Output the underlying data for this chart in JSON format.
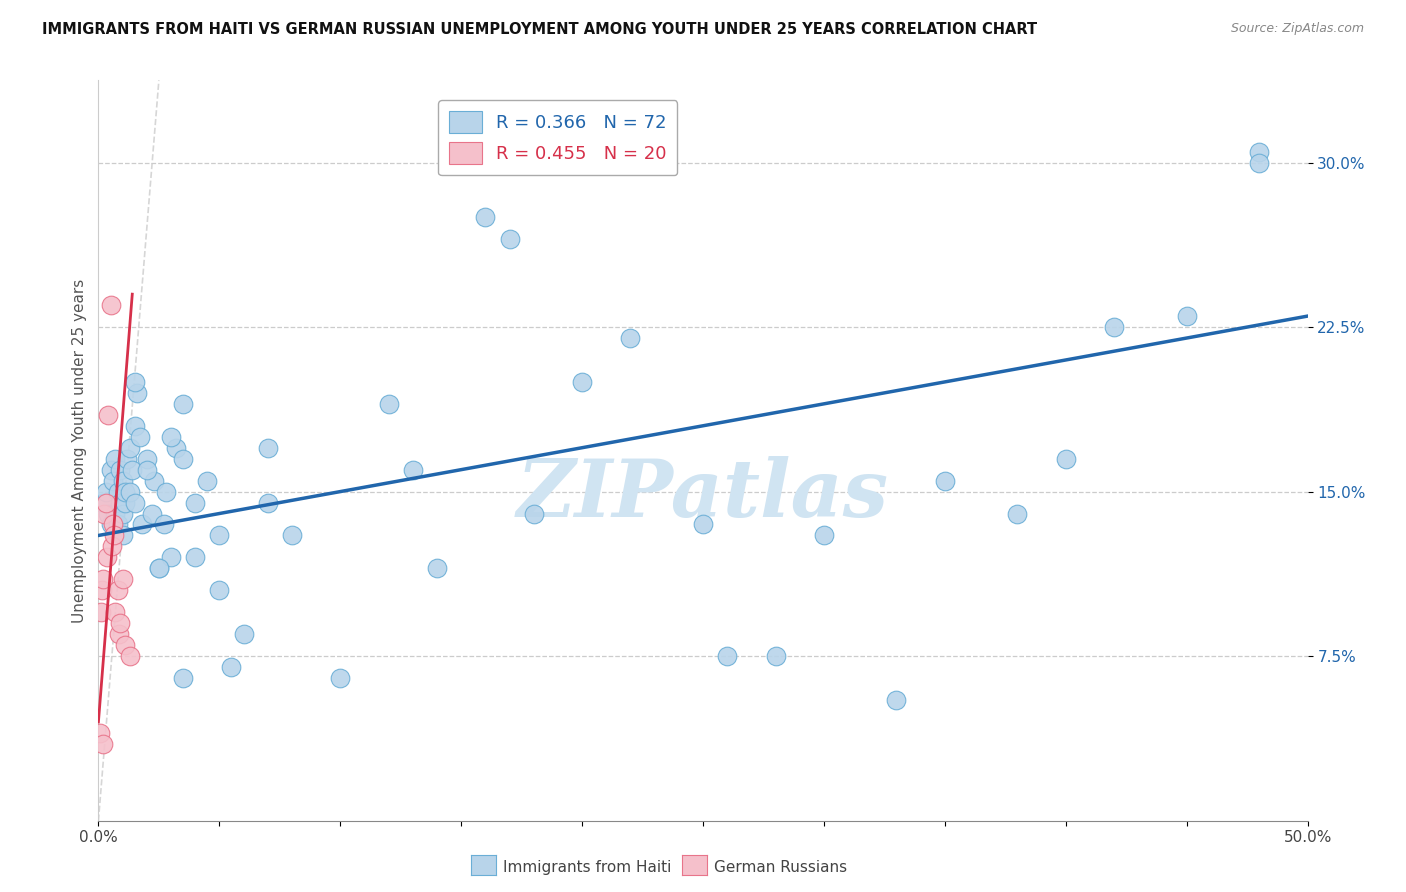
{
  "title": "IMMIGRANTS FROM HAITI VS GERMAN RUSSIAN UNEMPLOYMENT AMONG YOUTH UNDER 25 YEARS CORRELATION CHART",
  "source": "Source: ZipAtlas.com",
  "xlim": [
    0.0,
    50.0
  ],
  "ylim": [
    0.0,
    33.75
  ],
  "ylabel_vals": [
    7.5,
    15.0,
    22.5,
    30.0
  ],
  "ylabel_labels": [
    "7.5%",
    "15.0%",
    "22.5%",
    "30.0%"
  ],
  "xtick_vals": [
    0.0,
    5.0,
    10.0,
    15.0,
    20.0,
    25.0,
    30.0,
    35.0,
    40.0,
    45.0,
    50.0
  ],
  "xtick_labels_show": {
    "0.0": "0.0%",
    "50.0": "50.0%"
  },
  "ylabel": "Unemployment Among Youth under 25 years",
  "legend_xlabel": "Immigrants from Haiti",
  "legend_xlabel2": "German Russians",
  "haiti_color": "#b8d4ea",
  "haiti_edge_color": "#6aaed6",
  "german_color": "#f5c0cb",
  "german_edge_color": "#e8748a",
  "haiti_line_color": "#2166ac",
  "german_line_color": "#d6304a",
  "ref_line_color": "#cccccc",
  "watermark_color": "#d0e4f2",
  "haiti_x": [
    0.2,
    0.3,
    0.4,
    0.5,
    0.5,
    0.6,
    0.7,
    0.7,
    0.8,
    0.8,
    0.9,
    0.9,
    1.0,
    1.0,
    1.0,
    1.1,
    1.1,
    1.2,
    1.3,
    1.3,
    1.4,
    1.5,
    1.5,
    1.6,
    1.7,
    1.8,
    2.0,
    2.2,
    2.3,
    2.5,
    2.7,
    2.8,
    3.0,
    3.2,
    3.5,
    3.5,
    4.0,
    4.0,
    4.5,
    5.0,
    5.0,
    5.5,
    6.0,
    7.0,
    8.0,
    10.0,
    12.0,
    13.0,
    14.0,
    16.0,
    17.0,
    18.0,
    20.0,
    22.0,
    25.0,
    26.0,
    28.0,
    30.0,
    33.0,
    35.0,
    38.0,
    40.0,
    42.0,
    45.0,
    48.0,
    1.5,
    2.0,
    2.5,
    3.0,
    3.5,
    7.0,
    48.0
  ],
  "haiti_y": [
    14.5,
    15.0,
    14.0,
    13.5,
    16.0,
    15.5,
    14.0,
    16.5,
    13.5,
    15.0,
    14.5,
    16.0,
    13.0,
    15.5,
    14.0,
    14.5,
    15.0,
    16.5,
    15.0,
    17.0,
    16.0,
    18.0,
    14.5,
    19.5,
    17.5,
    13.5,
    16.5,
    14.0,
    15.5,
    11.5,
    13.5,
    15.0,
    12.0,
    17.0,
    16.5,
    19.0,
    12.0,
    14.5,
    15.5,
    10.5,
    13.0,
    7.0,
    8.5,
    17.0,
    13.0,
    6.5,
    19.0,
    16.0,
    11.5,
    27.5,
    26.5,
    14.0,
    20.0,
    22.0,
    13.5,
    7.5,
    7.5,
    13.0,
    5.5,
    15.5,
    14.0,
    16.5,
    22.5,
    23.0,
    30.5,
    20.0,
    16.0,
    11.5,
    17.5,
    6.5,
    14.5,
    30.0
  ],
  "german_x": [
    0.05,
    0.1,
    0.15,
    0.2,
    0.25,
    0.3,
    0.35,
    0.4,
    0.5,
    0.55,
    0.6,
    0.65,
    0.7,
    0.8,
    0.85,
    0.9,
    1.0,
    1.1,
    1.3,
    0.2
  ],
  "german_y": [
    4.0,
    9.5,
    10.5,
    11.0,
    14.0,
    14.5,
    12.0,
    18.5,
    23.5,
    12.5,
    13.5,
    13.0,
    9.5,
    10.5,
    8.5,
    9.0,
    11.0,
    8.0,
    7.5,
    3.5
  ],
  "haiti_line_x0": 0.0,
  "haiti_line_x1": 50.0,
  "haiti_line_y0": 13.0,
  "haiti_line_y1": 23.0,
  "german_line_x0": 0.0,
  "german_line_x1": 1.4,
  "german_line_y0": 4.5,
  "german_line_y1": 24.0
}
